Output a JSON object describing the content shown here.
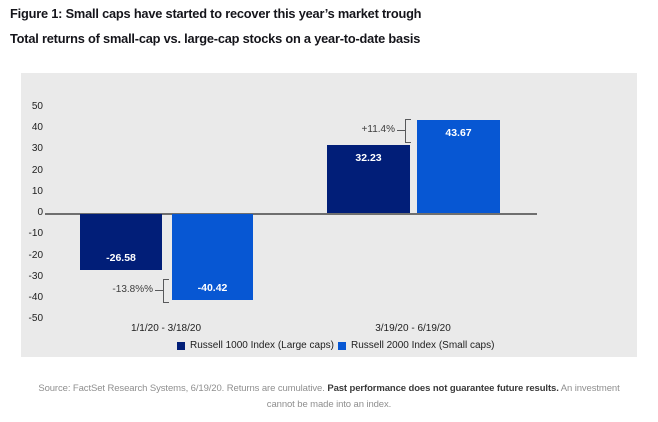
{
  "header": {
    "title": "Figure 1: Small caps have started to recover this year’s market trough",
    "subtitle": "Total returns of small-cap vs. large-cap stocks on a year-to-date basis"
  },
  "chart_data": {
    "type": "bar",
    "categories": [
      "1/1/20 - 3/18/20",
      "3/19/20 - 6/19/20"
    ],
    "series": [
      {
        "name": "Russell 1000 Index (Large caps)",
        "color": "#011e78",
        "values": [
          -26.58,
          32.23
        ]
      },
      {
        "name": "Russell 2000 Index (Small caps)",
        "color": "#0757d3",
        "values": [
          -40.42,
          43.67
        ]
      }
    ],
    "value_labels": [
      "-26.58",
      "-40.42",
      "32.23",
      "43.67"
    ],
    "y_ticks": [
      50,
      40,
      30,
      20,
      10,
      0,
      -10,
      -20,
      -30,
      -40,
      -50
    ],
    "ylim": [
      -50,
      50
    ],
    "grid": false,
    "legend_position": "bottom-center",
    "plot_background": "#eaeaea",
    "axis_line_color": "#6f6f6f",
    "annotations": [
      {
        "text": "+11.4%",
        "group": "3/19/20 - 6/19/20",
        "meaning": "difference between bar tops"
      },
      {
        "text": "-13.8%%",
        "group": "1/1/20 - 3/18/20",
        "meaning": "difference between bar bottoms"
      }
    ]
  },
  "footer": {
    "regular_before": "Source: FactSet Research Systems, 6/19/20. Returns are cumulative. ",
    "bold": "Past performance does not guarantee future results.",
    "regular_after": " An investment",
    "line2": "cannot be made into an index."
  }
}
